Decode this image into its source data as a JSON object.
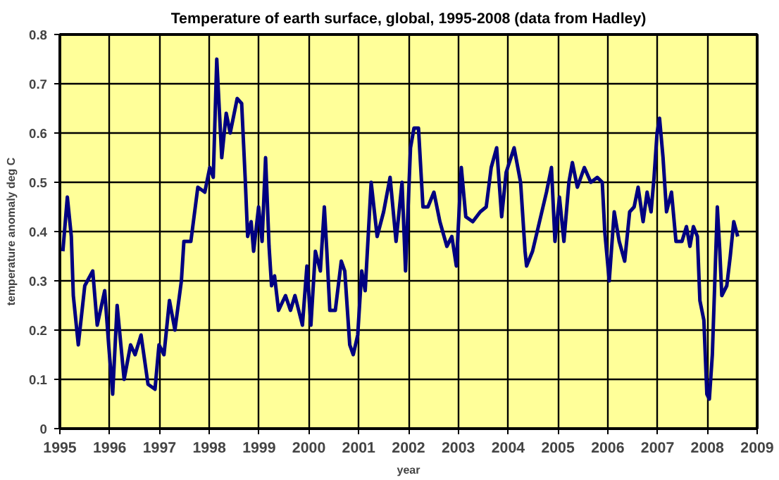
{
  "chart_data": {
    "type": "line",
    "title": "Temperature of earth surface, global, 1995-2008 (data from Hadley)",
    "xlabel": "year",
    "ylabel": "temperature anomaly deg C",
    "xlim": [
      1995,
      2009
    ],
    "xticks": [
      1995,
      1996,
      1997,
      1998,
      1999,
      2000,
      2001,
      2002,
      2003,
      2004,
      2005,
      2006,
      2007,
      2008,
      2009
    ],
    "ylim": [
      0,
      0.8
    ],
    "yticks": [
      0,
      0.1,
      0.2,
      0.3,
      0.4,
      0.5,
      0.6,
      0.7,
      0.8
    ],
    "grid": true,
    "marker": "none",
    "line_style": "solid",
    "series": [
      {
        "color": "#000080",
        "x": [
          1995.06,
          1995.15,
          1995.23,
          1995.27,
          1995.37,
          1995.5,
          1995.66,
          1995.75,
          1995.9,
          1995.98,
          1996.06,
          1996.15,
          1996.29,
          1996.42,
          1996.51,
          1996.63,
          1996.77,
          1996.91,
          1996.99,
          1997.09,
          1997.2,
          1997.31,
          1997.44,
          1997.49,
          1997.63,
          1997.77,
          1997.91,
          1998.01,
          1998.08,
          1998.15,
          1998.25,
          1998.34,
          1998.42,
          1998.56,
          1998.65,
          1998.72,
          1998.77,
          1998.84,
          1998.89,
          1998.99,
          1999.06,
          1999.13,
          1999.2,
          1999.25,
          1999.31,
          1999.39,
          1999.53,
          1999.63,
          1999.72,
          1999.87,
          1999.96,
          2000.04,
          2000.13,
          2000.23,
          2000.31,
          2000.36,
          2000.42,
          2000.53,
          2000.65,
          2000.72,
          2000.82,
          2000.89,
          2000.98,
          2001.06,
          2001.13,
          2001.25,
          2001.37,
          2001.5,
          2001.63,
          2001.75,
          2001.87,
          2001.94,
          2002.04,
          2002.11,
          2002.2,
          2002.29,
          2002.39,
          2002.51,
          2002.63,
          2002.77,
          2002.87,
          2002.96,
          2003.06,
          2003.15,
          2003.29,
          2003.44,
          2003.56,
          2003.66,
          2003.77,
          2003.87,
          2003.96,
          2004.12,
          2004.25,
          2004.34,
          2004.37,
          2004.49,
          2004.63,
          2004.77,
          2004.87,
          2004.94,
          2005.03,
          2005.12,
          2005.22,
          2005.29,
          2005.39,
          2005.53,
          2005.66,
          2005.79,
          2005.89,
          2005.94,
          2006.03,
          2006.13,
          2006.23,
          2006.34,
          2006.44,
          2006.53,
          2006.61,
          2006.71,
          2006.79,
          2006.87,
          2006.93,
          2006.99,
          2007.04,
          2007.11,
          2007.18,
          2007.28,
          2007.37,
          2007.49,
          2007.58,
          2007.65,
          2007.72,
          2007.8,
          2007.85,
          2007.93,
          2007.99,
          2008.04,
          2008.1,
          2008.17,
          2008.2,
          2008.25,
          2008.29,
          2008.39,
          2008.46,
          2008.53,
          2008.61
        ],
        "values": [
          0.36,
          0.47,
          0.39,
          0.27,
          0.17,
          0.29,
          0.32,
          0.21,
          0.28,
          0.17,
          0.07,
          0.25,
          0.1,
          0.17,
          0.15,
          0.19,
          0.09,
          0.08,
          0.17,
          0.15,
          0.26,
          0.2,
          0.3,
          0.38,
          0.38,
          0.49,
          0.48,
          0.53,
          0.51,
          0.75,
          0.55,
          0.64,
          0.6,
          0.67,
          0.66,
          0.51,
          0.39,
          0.42,
          0.36,
          0.45,
          0.38,
          0.55,
          0.37,
          0.29,
          0.31,
          0.24,
          0.27,
          0.24,
          0.27,
          0.21,
          0.33,
          0.21,
          0.36,
          0.32,
          0.45,
          0.36,
          0.24,
          0.24,
          0.34,
          0.32,
          0.17,
          0.15,
          0.19,
          0.32,
          0.28,
          0.5,
          0.39,
          0.44,
          0.51,
          0.38,
          0.5,
          0.32,
          0.57,
          0.61,
          0.61,
          0.45,
          0.45,
          0.48,
          0.42,
          0.37,
          0.39,
          0.33,
          0.53,
          0.43,
          0.42,
          0.44,
          0.45,
          0.53,
          0.57,
          0.43,
          0.52,
          0.57,
          0.5,
          0.36,
          0.33,
          0.36,
          0.42,
          0.48,
          0.53,
          0.38,
          0.47,
          0.38,
          0.5,
          0.54,
          0.49,
          0.53,
          0.5,
          0.51,
          0.5,
          0.4,
          0.3,
          0.44,
          0.38,
          0.34,
          0.44,
          0.45,
          0.49,
          0.42,
          0.48,
          0.44,
          0.51,
          0.6,
          0.63,
          0.55,
          0.44,
          0.48,
          0.38,
          0.38,
          0.41,
          0.37,
          0.41,
          0.39,
          0.26,
          0.22,
          0.07,
          0.06,
          0.15,
          0.36,
          0.45,
          0.36,
          0.27,
          0.29,
          0.35,
          0.42,
          0.39
        ]
      }
    ]
  }
}
